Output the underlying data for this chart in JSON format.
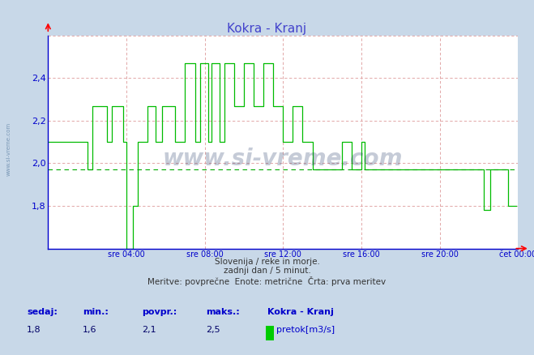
{
  "title": "Kokra - Kranj",
  "title_color": "#4444cc",
  "bg_color": "#c8d8e8",
  "plot_bg_color": "#ffffff",
  "line_color": "#00bb00",
  "avg_line_color": "#00aa00",
  "grid_color": "#dd9999",
  "axis_color": "#0000cc",
  "tick_color": "#0000cc",
  "ylim": [
    1.6,
    2.6
  ],
  "yticks": [
    1.8,
    2.0,
    2.2,
    2.4
  ],
  "xtick_positions": [
    4,
    8,
    12,
    16,
    20,
    24
  ],
  "xtick_labels": [
    "sre 04:00",
    "sre 08:00",
    "sre 12:00",
    "sre 16:00",
    "sre 20:00",
    "čet 00:00"
  ],
  "footer_line1": "Slovenija / reke in morje.",
  "footer_line2": "zadnji dan / 5 minut.",
  "footer_line3": "Meritve: povprečne  Enote: metrične  Črta: prva meritev",
  "stats_label_color": "#0000cc",
  "stats_value_color": "#000066",
  "sedaj_label": "sedaj:",
  "min_label": "min.:",
  "povpr_label": "povpr.:",
  "maks_label": "maks.:",
  "sedaj": "1,8",
  "min_val": "1,6",
  "povpr": "2,1",
  "maks": "2,5",
  "legend_station": "Kokra - Kranj",
  "legend_label": "pretok[m3/s]",
  "legend_color": "#00cc00",
  "avg_value": 1.97,
  "watermark": "www.si-vreme.com",
  "watermark_side": "www.si-vreme.com"
}
